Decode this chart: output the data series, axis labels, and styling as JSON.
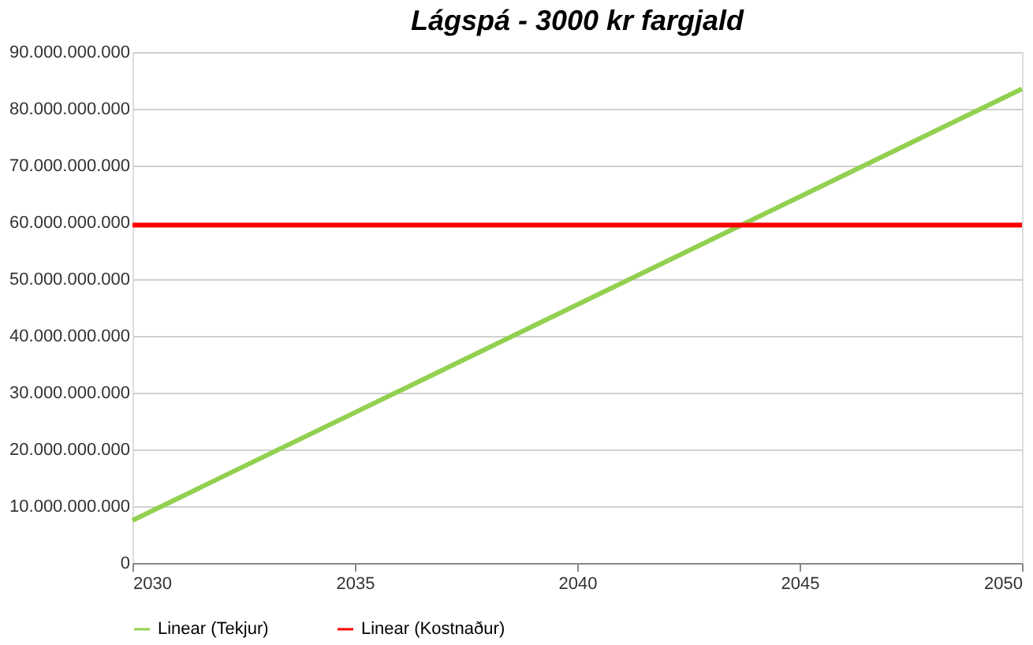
{
  "chart_data": {
    "type": "line",
    "title": "Lágspá - 3000 kr fargjald",
    "x": [
      2030,
      2050
    ],
    "series": [
      {
        "name": "Linear (Tekjur)",
        "color": "#92d050",
        "values": [
          7500000000,
          83500000000
        ]
      },
      {
        "name": "Linear (Kostnaður)",
        "color": "#ff0000",
        "values": [
          59500000000,
          59500000000
        ]
      }
    ],
    "xlim": [
      2030,
      2050
    ],
    "xticks": [
      2030,
      2035,
      2040,
      2045,
      2050
    ],
    "ylim": [
      0,
      90000000000
    ],
    "yticks": [
      0,
      {
        "value": 10000000000,
        "label": "10.000.000.000"
      },
      {
        "value": 20000000000,
        "label": "20.000.000.000"
      },
      {
        "value": 30000000000,
        "label": "30.000.000.000"
      },
      {
        "value": 40000000000,
        "label": "40.000.000.000"
      },
      {
        "value": 50000000000,
        "label": "50.000.000.000"
      },
      {
        "value": 60000000000,
        "label": "60.000.000.000"
      },
      {
        "value": 70000000000,
        "label": "70.000.000.000"
      },
      {
        "value": 80000000000,
        "label": "80.000.000.000"
      },
      {
        "value": 90000000000,
        "label": "90.000.000.000"
      }
    ],
    "grid": "y",
    "legend": "bottom",
    "marker": "none",
    "line_style": "solid"
  }
}
